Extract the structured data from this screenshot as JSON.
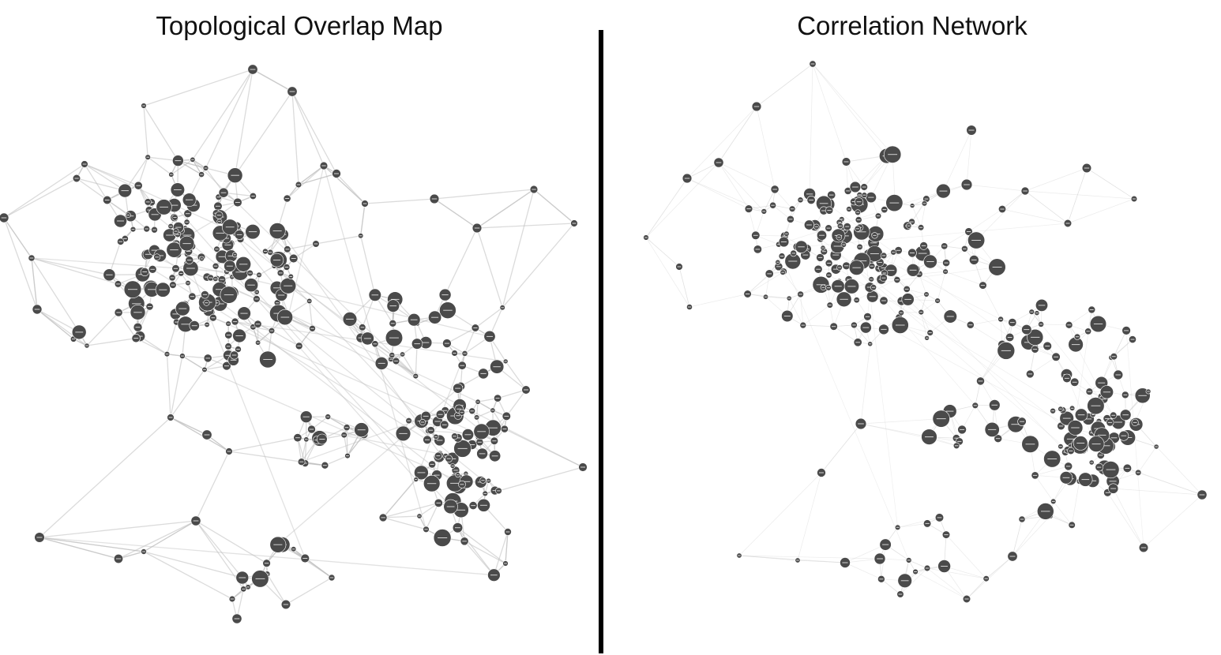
{
  "panels": {
    "left": {
      "title": "Topological Overlap Map"
    },
    "right": {
      "title": "Correlation Network"
    }
  },
  "colors": {
    "node_fill": "#4a4a4a",
    "node_label": "#ffffff",
    "edge_left": "#bdbdbd",
    "edge_right": "#d2d2d2",
    "divider": "#000000",
    "title": "#111111"
  }
}
